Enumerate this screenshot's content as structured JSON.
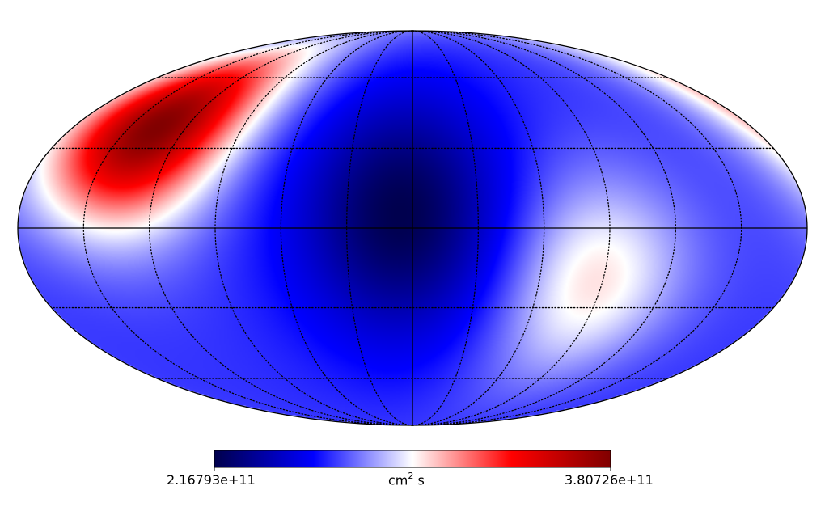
{
  "chart_data": {
    "type": "heatmap",
    "projection": "mollweide",
    "colormap": "seismic",
    "colormap_stops": [
      "#00004c",
      "#0000ff",
      "#ffffff",
      "#ff0000",
      "#800000"
    ],
    "colorbar": {
      "min_label": "2.16793e+11",
      "max_label": "3.80726e+11",
      "min": 216793000000.0,
      "max": 380726000000.0,
      "unit_base": "cm",
      "unit_exp": "2",
      "unit_tail": " s"
    },
    "graticule": {
      "meridians_deg": [
        -150,
        -120,
        -90,
        -60,
        -30,
        0,
        30,
        60,
        90,
        120,
        150
      ],
      "parallels_deg": [
        -60,
        -30,
        0,
        30,
        60
      ],
      "solid_lines": [
        "equator",
        "central-meridian"
      ]
    },
    "field_features": [
      {
        "kind": "max",
        "lon_deg": 135,
        "lat_deg": 38,
        "value": 380726000000.0
      },
      {
        "kind": "min",
        "lon_deg": 5,
        "lat_deg": 5,
        "value": 216793000000.0
      },
      {
        "kind": "secondary-high",
        "lon_deg": -85,
        "lat_deg": -20,
        "value": 305000000000.0
      }
    ]
  }
}
